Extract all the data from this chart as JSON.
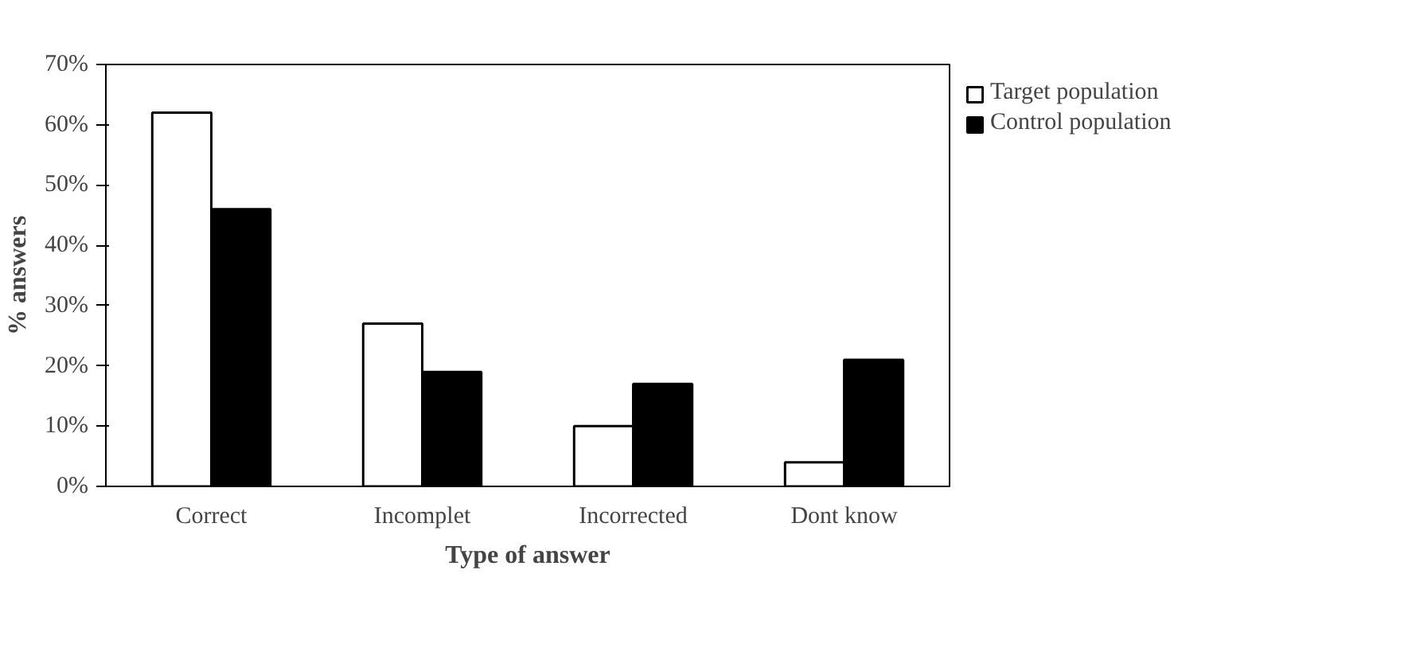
{
  "chart_data": {
    "type": "bar",
    "xlabel": "Type of answer",
    "ylabel": "% answers",
    "categories": [
      "Correct",
      "Incomplet",
      "Incorrected",
      "Dont know"
    ],
    "series": [
      {
        "name": "Target population",
        "color": "#ffffff",
        "values": [
          62,
          27,
          10,
          4
        ]
      },
      {
        "name": "Control population",
        "color": "#000000",
        "values": [
          46,
          19,
          17,
          21
        ]
      }
    ],
    "ylim": [
      0,
      70
    ],
    "yticks": [
      {
        "value": 0,
        "label": "0%"
      },
      {
        "value": 10,
        "label": "10%"
      },
      {
        "value": 20,
        "label": "20%"
      },
      {
        "value": 30,
        "label": "30%"
      },
      {
        "value": 40,
        "label": "40%"
      },
      {
        "value": 50,
        "label": "50%"
      },
      {
        "value": 60,
        "label": "60%"
      },
      {
        "value": 70,
        "label": "70%"
      }
    ],
    "grid": false,
    "legend": "right"
  }
}
